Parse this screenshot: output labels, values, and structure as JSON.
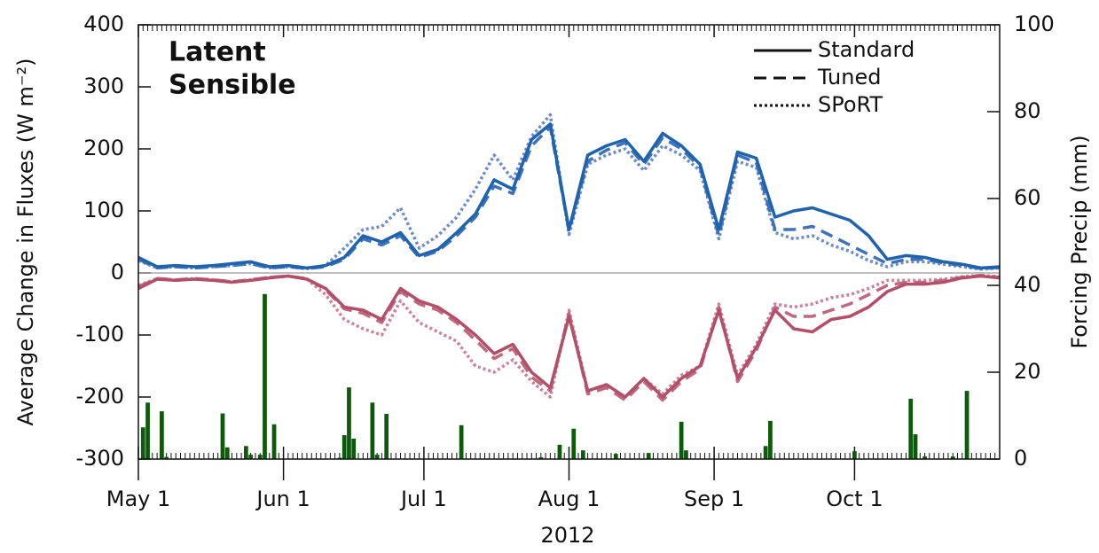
{
  "chart_data": {
    "type": "line",
    "ylabel": "Average Change in Fluxes (W m⁻²)",
    "y2label": "Forcing Precip (mm)",
    "xlabel": "2012",
    "xlim": [
      0,
      184
    ],
    "xticks": [
      {
        "value": 0,
        "label": "May 1"
      },
      {
        "value": 31,
        "label": "Jun 1"
      },
      {
        "value": 61,
        "label": "Jul 1"
      },
      {
        "value": 92,
        "label": "Aug 1"
      },
      {
        "value": 123,
        "label": "Sep 1"
      },
      {
        "value": 153,
        "label": "Oct 1"
      }
    ],
    "ylim": [
      -300,
      400
    ],
    "yticks": [
      -300,
      -200,
      -100,
      0,
      100,
      200,
      300,
      400
    ],
    "y2lim": [
      0,
      100
    ],
    "y2ticks": [
      0,
      20,
      40,
      60,
      80,
      100
    ],
    "styles": [
      {
        "name": "Standard",
        "dash": "none"
      },
      {
        "name": "Tuned",
        "dash": "14 8"
      },
      {
        "name": "SPoRT",
        "dash": "3 3"
      }
    ],
    "x": [
      0,
      4,
      8,
      12,
      16,
      20,
      24,
      28,
      32,
      36,
      40,
      44,
      48,
      52,
      56,
      60,
      64,
      68,
      72,
      76,
      80,
      84,
      88,
      92,
      96,
      100,
      104,
      108,
      112,
      116,
      120,
      124,
      128,
      132,
      136,
      140,
      144,
      148,
      152,
      156,
      160,
      164,
      168,
      172,
      176,
      180,
      184
    ],
    "groups": [
      {
        "name": "Latent",
        "color": "#1f63ad",
        "series": [
          {
            "color": "#1f63ad",
            "values": [
              25,
              10,
              12,
              10,
              12,
              15,
              18,
              10,
              12,
              8,
              12,
              25,
              60,
              50,
              65,
              28,
              38,
              65,
              95,
              150,
              135,
              215,
              240,
              70,
              190,
              205,
              215,
              180,
              225,
              205,
              175,
              70,
              195,
              185,
              90,
              100,
              105,
              95,
              85,
              60,
              22,
              28,
              25,
              18,
              14,
              8,
              10
            ]
          },
          {
            "color": "#3f72b8",
            "values": [
              22,
              8,
              10,
              8,
              10,
              12,
              15,
              8,
              10,
              7,
              10,
              22,
              55,
              45,
              60,
              25,
              35,
              60,
              90,
              140,
              128,
              205,
              235,
              68,
              180,
              198,
              210,
              175,
              218,
              200,
              170,
              60,
              190,
              178,
              70,
              70,
              75,
              60,
              45,
              30,
              15,
              22,
              22,
              16,
              12,
              7,
              9
            ]
          },
          {
            "color": "#6a8cc8",
            "values": [
              20,
              8,
              10,
              8,
              10,
              12,
              15,
              8,
              10,
              7,
              12,
              40,
              70,
              75,
              105,
              40,
              60,
              90,
              135,
              190,
              150,
              220,
              255,
              62,
              175,
              190,
              200,
              165,
              205,
              190,
              165,
              55,
              180,
              170,
              65,
              55,
              60,
              45,
              35,
              20,
              10,
              18,
              18,
              14,
              10,
              6,
              8
            ]
          }
        ]
      },
      {
        "name": "Sensible",
        "color": "#b2506a",
        "series": [
          {
            "color": "#b2506a",
            "values": [
              -25,
              -10,
              -12,
              -10,
              -12,
              -15,
              -12,
              -8,
              -5,
              -10,
              -25,
              -55,
              -60,
              -75,
              -25,
              -45,
              -55,
              -75,
              -100,
              -130,
              -115,
              -160,
              -185,
              -70,
              -190,
              -180,
              -200,
              -170,
              -200,
              -170,
              -150,
              -60,
              -170,
              -120,
              -60,
              -90,
              -95,
              -75,
              -70,
              -55,
              -30,
              -18,
              -18,
              -15,
              -8,
              -5,
              -8
            ]
          },
          {
            "color": "#bf6880",
            "values": [
              -22,
              -9,
              -11,
              -9,
              -11,
              -14,
              -11,
              -7,
              -5,
              -9,
              -27,
              -58,
              -65,
              -80,
              -30,
              -50,
              -60,
              -80,
              -108,
              -138,
              -122,
              -168,
              -190,
              -65,
              -195,
              -185,
              -205,
              -175,
              -205,
              -175,
              -155,
              -55,
              -175,
              -125,
              -55,
              -70,
              -70,
              -60,
              -50,
              -35,
              -20,
              -15,
              -15,
              -12,
              -7,
              -4,
              -7
            ]
          },
          {
            "color": "#cc8298",
            "values": [
              -20,
              -9,
              -11,
              -9,
              -11,
              -14,
              -11,
              -7,
              -5,
              -10,
              -35,
              -75,
              -90,
              -100,
              -45,
              -80,
              -95,
              -110,
              -150,
              -160,
              -140,
              -175,
              -200,
              -60,
              -190,
              -180,
              -200,
              -170,
              -195,
              -165,
              -150,
              -50,
              -165,
              -115,
              -50,
              -55,
              -50,
              -40,
              -35,
              -25,
              -12,
              -12,
              -12,
              -10,
              -6,
              -4,
              -6
            ]
          }
        ]
      }
    ],
    "precip": {
      "color": "#0d5a0d",
      "x": [
        1,
        2,
        5,
        6,
        18,
        19,
        23,
        24,
        26,
        27,
        29,
        43,
        44,
        45,
        46,
        50,
        51,
        53,
        69,
        86,
        90,
        93,
        95,
        102,
        109,
        116,
        117,
        134,
        135,
        153,
        165,
        166,
        168,
        174,
        177
      ],
      "values": [
        7.3,
        13,
        11,
        0.5,
        10.5,
        2.7,
        3,
        1,
        1,
        38,
        8,
        0.3,
        5.5,
        16.5,
        4.7,
        13,
        1,
        10.4,
        7.8,
        0.4,
        3.3,
        7,
        2,
        1.2,
        1.4,
        8.6,
        2,
        3,
        8.8,
        1.8,
        13.9,
        5.7,
        0.6,
        0.6,
        15.7
      ]
    }
  }
}
